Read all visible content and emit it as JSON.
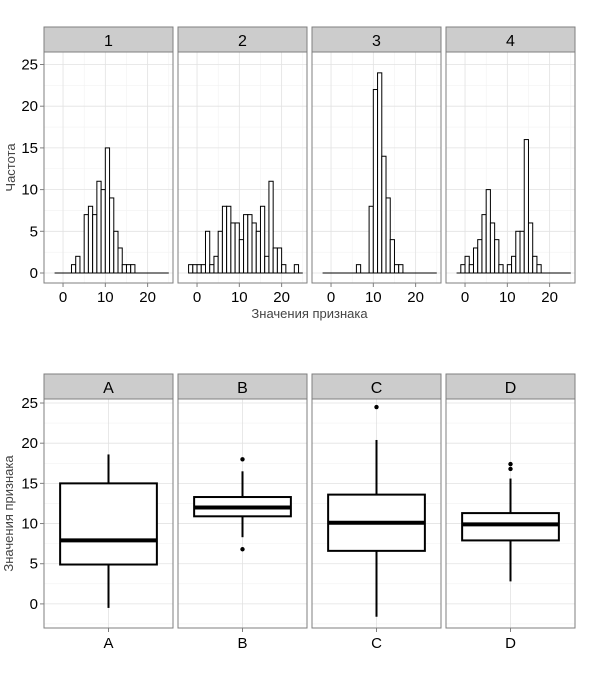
{
  "chart_data": [
    {
      "type": "histogram",
      "facet_panels": [
        "1",
        "2",
        "3",
        "4"
      ],
      "xlabel": "Значения признака",
      "ylabel": "Частота",
      "bin_width": 1,
      "xlim": [
        -4.5,
        26
      ],
      "ylim": [
        -1.2,
        26.5
      ],
      "x_ticks": [
        0,
        10,
        20
      ],
      "y_ticks": [
        0,
        5,
        10,
        15,
        20,
        25
      ],
      "grid": true,
      "series": [
        {
          "name": "1",
          "bins": [
            {
              "x": 2.5,
              "count": 1
            },
            {
              "x": 3.5,
              "count": 2
            },
            {
              "x": 4.5,
              "count": 0
            },
            {
              "x": 5.5,
              "count": 7
            },
            {
              "x": 6.5,
              "count": 8
            },
            {
              "x": 7.5,
              "count": 7
            },
            {
              "x": 8.5,
              "count": 11
            },
            {
              "x": 9.5,
              "count": 10
            },
            {
              "x": 10.5,
              "count": 15
            },
            {
              "x": 11.5,
              "count": 9
            },
            {
              "x": 12.5,
              "count": 5
            },
            {
              "x": 13.5,
              "count": 3
            },
            {
              "x": 14.5,
              "count": 1
            },
            {
              "x": 15.5,
              "count": 1
            },
            {
              "x": 16.5,
              "count": 1
            }
          ]
        },
        {
          "name": "2",
          "bins": [
            {
              "x": -1.5,
              "count": 1
            },
            {
              "x": -0.5,
              "count": 1
            },
            {
              "x": 0.5,
              "count": 1
            },
            {
              "x": 1.5,
              "count": 1
            },
            {
              "x": 2.5,
              "count": 5
            },
            {
              "x": 3.5,
              "count": 1
            },
            {
              "x": 4.5,
              "count": 2
            },
            {
              "x": 5.5,
              "count": 5
            },
            {
              "x": 6.5,
              "count": 8
            },
            {
              "x": 7.5,
              "count": 8
            },
            {
              "x": 8.5,
              "count": 6
            },
            {
              "x": 9.5,
              "count": 6
            },
            {
              "x": 10.5,
              "count": 4
            },
            {
              "x": 11.5,
              "count": 7
            },
            {
              "x": 12.5,
              "count": 7
            },
            {
              "x": 13.5,
              "count": 6
            },
            {
              "x": 14.5,
              "count": 5
            },
            {
              "x": 15.5,
              "count": 8
            },
            {
              "x": 16.5,
              "count": 2
            },
            {
              "x": 17.5,
              "count": 11
            },
            {
              "x": 18.5,
              "count": 3
            },
            {
              "x": 19.5,
              "count": 3
            },
            {
              "x": 20.5,
              "count": 1
            },
            {
              "x": 23.5,
              "count": 1
            }
          ]
        },
        {
          "name": "3",
          "bins": [
            {
              "x": 6.5,
              "count": 1
            },
            {
              "x": 9.5,
              "count": 8
            },
            {
              "x": 10.5,
              "count": 22
            },
            {
              "x": 11.5,
              "count": 24
            },
            {
              "x": 12.5,
              "count": 14
            },
            {
              "x": 13.5,
              "count": 9
            },
            {
              "x": 14.5,
              "count": 4
            },
            {
              "x": 15.5,
              "count": 1
            },
            {
              "x": 16.5,
              "count": 1
            }
          ]
        },
        {
          "name": "4",
          "bins": [
            {
              "x": -0.5,
              "count": 1
            },
            {
              "x": 0.5,
              "count": 2
            },
            {
              "x": 1.5,
              "count": 1
            },
            {
              "x": 2.5,
              "count": 3
            },
            {
              "x": 3.5,
              "count": 4
            },
            {
              "x": 4.5,
              "count": 7
            },
            {
              "x": 5.5,
              "count": 10
            },
            {
              "x": 6.5,
              "count": 6
            },
            {
              "x": 7.5,
              "count": 4
            },
            {
              "x": 8.5,
              "count": 1
            },
            {
              "x": 9.5,
              "count": 0
            },
            {
              "x": 10.5,
              "count": 1
            },
            {
              "x": 11.5,
              "count": 2
            },
            {
              "x": 12.5,
              "count": 5
            },
            {
              "x": 13.5,
              "count": 5
            },
            {
              "x": 14.5,
              "count": 16
            },
            {
              "x": 15.5,
              "count": 6
            },
            {
              "x": 16.5,
              "count": 2
            },
            {
              "x": 17.5,
              "count": 1
            }
          ]
        }
      ]
    },
    {
      "type": "box",
      "categories": [
        "A",
        "B",
        "C",
        "D"
      ],
      "facet_panels": [
        "A",
        "B",
        "C",
        "D"
      ],
      "ylabel": "Значения признака",
      "xlabel": "",
      "ylim": [
        -3,
        25.5
      ],
      "y_ticks": [
        0,
        5,
        10,
        15,
        20,
        25
      ],
      "grid": true,
      "series": [
        {
          "name": "A",
          "whisker_low": -0.5,
          "q1": 4.9,
          "median": 7.9,
          "q3": 15.0,
          "whisker_high": 18.6,
          "outliers": []
        },
        {
          "name": "B",
          "whisker_low": 8.3,
          "q1": 10.9,
          "median": 12.0,
          "q3": 13.3,
          "whisker_high": 16.5,
          "outliers": [
            6.8,
            18.0
          ]
        },
        {
          "name": "C",
          "whisker_low": -1.6,
          "q1": 6.6,
          "median": 10.1,
          "q3": 13.6,
          "whisker_high": 20.4,
          "outliers": [
            24.5
          ]
        },
        {
          "name": "D",
          "whisker_low": 2.8,
          "q1": 7.9,
          "median": 9.9,
          "q3": 11.3,
          "whisker_high": 15.6,
          "outliers": [
            16.8,
            17.4
          ]
        }
      ]
    }
  ],
  "colors": {
    "strip_fill": "#cccccc",
    "strip_border": "#7f7f7f",
    "panel_border": "#7f7f7f",
    "grid_major": "#e2e2e2",
    "grid_minor": "#f2f2f2",
    "bar_stroke": "#000000",
    "bar_fill": "#ffffff",
    "text": "#000000",
    "axis_title": "#444444"
  }
}
